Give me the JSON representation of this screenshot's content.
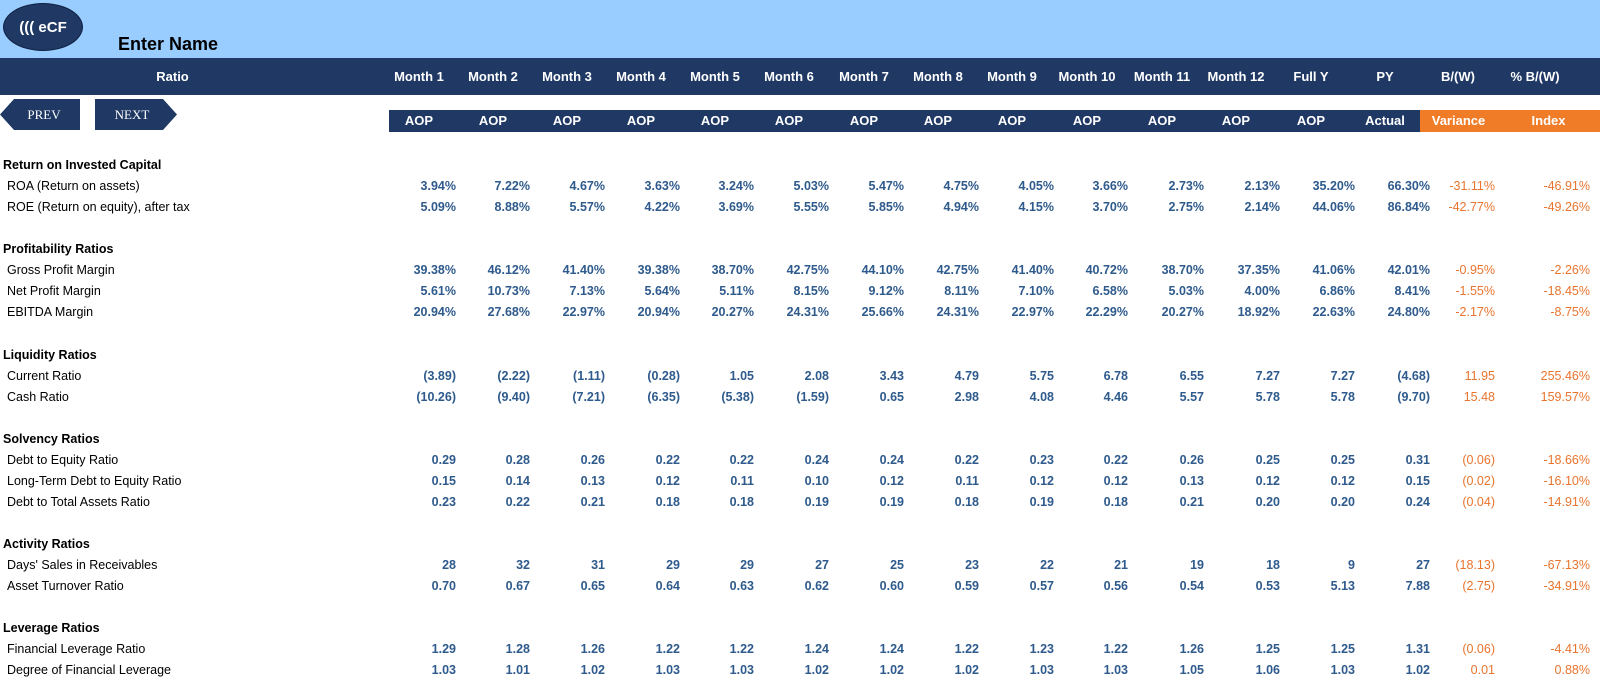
{
  "app": {
    "logo_text": "((( eCF",
    "name": "Enter Name"
  },
  "nav": {
    "prev": "PREV",
    "next": "NEXT"
  },
  "columns": [
    "Ratio",
    "Month 1",
    "Month 2",
    "Month 3",
    "Month 4",
    "Month 5",
    "Month 6",
    "Month 7",
    "Month 8",
    "Month 9",
    "Month 10",
    "Month 11",
    "Month 12",
    "Full Y",
    "PY",
    "B/(W)",
    "% B/(W)"
  ],
  "subheaders": [
    "AOP",
    "AOP",
    "AOP",
    "AOP",
    "AOP",
    "AOP",
    "AOP",
    "AOP",
    "AOP",
    "AOP",
    "AOP",
    "AOP",
    "AOP",
    "Actual",
    "Variance",
    "Index"
  ],
  "colors": {
    "header_bg": "#1f3864",
    "topbar_bg": "#99ccff",
    "variance_bg": "#f07c28",
    "value_text": "#2e5a8c",
    "variance_text": "#e8742e"
  },
  "sections": [
    {
      "title": "Return on Invested Capital",
      "rows": [
        {
          "label": "ROA (Return on assets)",
          "values": [
            "3.94%",
            "7.22%",
            "4.67%",
            "3.63%",
            "3.24%",
            "5.03%",
            "5.47%",
            "4.75%",
            "4.05%",
            "3.66%",
            "2.73%",
            "2.13%",
            "35.20%",
            "66.30%",
            "-31.11%",
            "-46.91%"
          ]
        },
        {
          "label": "ROE (Return on equity), after tax",
          "values": [
            "5.09%",
            "8.88%",
            "5.57%",
            "4.22%",
            "3.69%",
            "5.55%",
            "5.85%",
            "4.94%",
            "4.15%",
            "3.70%",
            "2.75%",
            "2.14%",
            "44.06%",
            "86.84%",
            "-42.77%",
            "-49.26%"
          ]
        }
      ]
    },
    {
      "title": "Profitability Ratios",
      "rows": [
        {
          "label": "Gross Profit Margin",
          "values": [
            "39.38%",
            "46.12%",
            "41.40%",
            "39.38%",
            "38.70%",
            "42.75%",
            "44.10%",
            "42.75%",
            "41.40%",
            "40.72%",
            "38.70%",
            "37.35%",
            "41.06%",
            "42.01%",
            "-0.95%",
            "-2.26%"
          ]
        },
        {
          "label": "Net Profit Margin",
          "values": [
            "5.61%",
            "10.73%",
            "7.13%",
            "5.64%",
            "5.11%",
            "8.15%",
            "9.12%",
            "8.11%",
            "7.10%",
            "6.58%",
            "5.03%",
            "4.00%",
            "6.86%",
            "8.41%",
            "-1.55%",
            "-18.45%"
          ]
        },
        {
          "label": "EBITDA Margin",
          "values": [
            "20.94%",
            "27.68%",
            "22.97%",
            "20.94%",
            "20.27%",
            "24.31%",
            "25.66%",
            "24.31%",
            "22.97%",
            "22.29%",
            "20.27%",
            "18.92%",
            "22.63%",
            "24.80%",
            "-2.17%",
            "-8.75%"
          ]
        }
      ]
    },
    {
      "title": "Liquidity Ratios",
      "rows": [
        {
          "label": "Current Ratio",
          "values": [
            "(3.89)",
            "(2.22)",
            "(1.11)",
            "(0.28)",
            "1.05",
            "2.08",
            "3.43",
            "4.79",
            "5.75",
            "6.78",
            "6.55",
            "7.27",
            "7.27",
            "(4.68)",
            "11.95",
            "255.46%"
          ]
        },
        {
          "label": "Cash Ratio",
          "values": [
            "(10.26)",
            "(9.40)",
            "(7.21)",
            "(6.35)",
            "(5.38)",
            "(1.59)",
            "0.65",
            "2.98",
            "4.08",
            "4.46",
            "5.57",
            "5.78",
            "5.78",
            "(9.70)",
            "15.48",
            "159.57%"
          ]
        }
      ]
    },
    {
      "title": "Solvency Ratios",
      "rows": [
        {
          "label": "Debt to Equity Ratio",
          "values": [
            "0.29",
            "0.28",
            "0.26",
            "0.22",
            "0.22",
            "0.24",
            "0.24",
            "0.22",
            "0.23",
            "0.22",
            "0.26",
            "0.25",
            "0.25",
            "0.31",
            "(0.06)",
            "-18.66%"
          ]
        },
        {
          "label": "Long-Term Debt to Equity Ratio",
          "values": [
            "0.15",
            "0.14",
            "0.13",
            "0.12",
            "0.11",
            "0.10",
            "0.12",
            "0.11",
            "0.12",
            "0.12",
            "0.13",
            "0.12",
            "0.12",
            "0.15",
            "(0.02)",
            "-16.10%"
          ]
        },
        {
          "label": "Debt to Total Assets Ratio",
          "values": [
            "0.23",
            "0.22",
            "0.21",
            "0.18",
            "0.18",
            "0.19",
            "0.19",
            "0.18",
            "0.19",
            "0.18",
            "0.21",
            "0.20",
            "0.20",
            "0.24",
            "(0.04)",
            "-14.91%"
          ]
        }
      ]
    },
    {
      "title": "Activity Ratios",
      "rows": [
        {
          "label": "Days' Sales in Receivables",
          "values": [
            "28",
            "32",
            "31",
            "29",
            "29",
            "27",
            "25",
            "23",
            "22",
            "21",
            "19",
            "18",
            "9",
            "27",
            "(18.13)",
            "-67.13%"
          ]
        },
        {
          "label": "Asset Turnover Ratio",
          "values": [
            "0.70",
            "0.67",
            "0.65",
            "0.64",
            "0.63",
            "0.62",
            "0.60",
            "0.59",
            "0.57",
            "0.56",
            "0.54",
            "0.53",
            "5.13",
            "7.88",
            "(2.75)",
            "-34.91%"
          ]
        }
      ]
    },
    {
      "title": "Leverage Ratios",
      "rows": [
        {
          "label": "Financial Leverage Ratio",
          "values": [
            "1.29",
            "1.28",
            "1.26",
            "1.22",
            "1.22",
            "1.24",
            "1.24",
            "1.22",
            "1.23",
            "1.22",
            "1.26",
            "1.25",
            "1.25",
            "1.31",
            "(0.06)",
            "-4.41%"
          ]
        },
        {
          "label": "Degree of Financial Leverage",
          "values": [
            "1.03",
            "1.01",
            "1.02",
            "1.03",
            "1.03",
            "1.02",
            "1.02",
            "1.02",
            "1.03",
            "1.03",
            "1.05",
            "1.06",
            "1.03",
            "1.02",
            "0.01",
            "0.88%"
          ]
        }
      ]
    }
  ]
}
